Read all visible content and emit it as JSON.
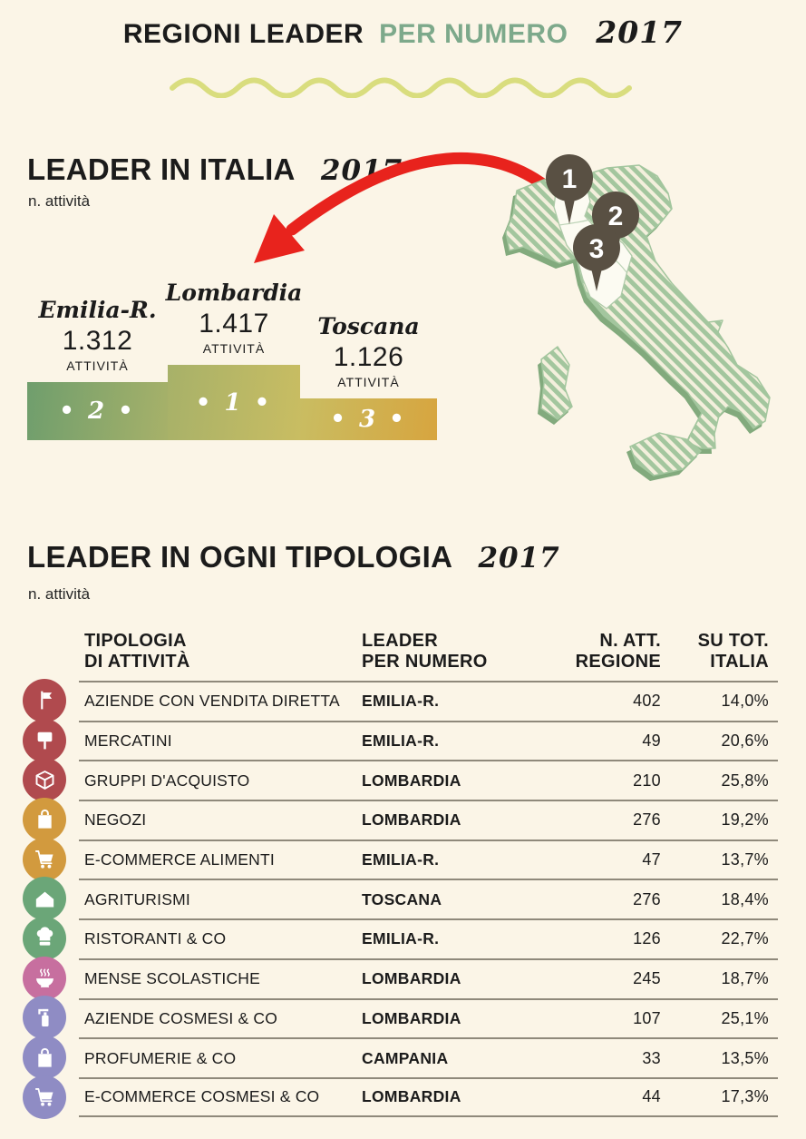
{
  "header": {
    "title_black": "REGIONI LEADER",
    "title_green": "PER NUMERO",
    "year": "2017"
  },
  "leader_italia": {
    "title": "LEADER IN ITALIA",
    "year": "2017",
    "subtitle": "n. attività",
    "podium": [
      {
        "rank": "2",
        "rank_label": "• 2 •",
        "region": "Emilia-R.",
        "value": "1.312",
        "unit": "ATTIVITÀ"
      },
      {
        "rank": "1",
        "rank_label": "• 1 •",
        "region": "Lombardia",
        "value": "1.417",
        "unit": "ATTIVITÀ"
      },
      {
        "rank": "3",
        "rank_label": "• 3 •",
        "region": "Toscana",
        "value": "1.126",
        "unit": "ATTIVITÀ"
      }
    ],
    "map_pins": [
      "1",
      "2",
      "3"
    ]
  },
  "tipologia": {
    "title": "LEADER IN OGNI TIPOLOGIA",
    "year": "2017",
    "subtitle": "n. attività",
    "columns": [
      "TIPOLOGIA\nDI ATTIVITÀ",
      "LEADER\nPER NUMERO",
      "N. ATT.\nREGIONE",
      "SU TOT.\nITALIA"
    ],
    "rows": [
      {
        "icon": "flag-icon",
        "icon_color": "#b04a4e",
        "category": "AZIENDE CON VENDITA DIRETTA",
        "leader": "EMILIA-R.",
        "n_att": "402",
        "pct": "14,0%"
      },
      {
        "icon": "signboard-icon",
        "icon_color": "#b04a4e",
        "category": "MERCATINI",
        "leader": "EMILIA-R.",
        "n_att": "49",
        "pct": "20,6%"
      },
      {
        "icon": "package-icon",
        "icon_color": "#b04a4e",
        "category": "GRUPPI D'ACQUISTO",
        "leader": "LOMBARDIA",
        "n_att": "210",
        "pct": "25,8%"
      },
      {
        "icon": "shopping-bag-icon",
        "icon_color": "#d29a3e",
        "category": "NEGOZI",
        "leader": "LOMBARDIA",
        "n_att": "276",
        "pct": "19,2%"
      },
      {
        "icon": "shopping-cart-icon",
        "icon_color": "#d29a3e",
        "category": "E-COMMERCE ALIMENTI",
        "leader": "EMILIA-R.",
        "n_att": "47",
        "pct": "13,7%"
      },
      {
        "icon": "farmhouse-icon",
        "icon_color": "#6ba678",
        "category": "AGRITURISMI",
        "leader": "TOSCANA",
        "n_att": "276",
        "pct": "18,4%"
      },
      {
        "icon": "chef-hat-icon",
        "icon_color": "#6ba678",
        "category": "RISTORANTI & CO",
        "leader": "EMILIA-R.",
        "n_att": "126",
        "pct": "22,7%"
      },
      {
        "icon": "soup-bowl-icon",
        "icon_color": "#c76f9f",
        "category": "MENSE SCOLASTICHE",
        "leader": "LOMBARDIA",
        "n_att": "245",
        "pct": "18,7%"
      },
      {
        "icon": "pump-bottle-icon",
        "icon_color": "#8f8cc4",
        "category": "AZIENDE COSMESI & CO",
        "leader": "LOMBARDIA",
        "n_att": "107",
        "pct": "25,1%"
      },
      {
        "icon": "shopping-bag-icon",
        "icon_color": "#8f8cc4",
        "category": "PROFUMERIE & CO",
        "leader": "CAMPANIA",
        "n_att": "33",
        "pct": "13,5%"
      },
      {
        "icon": "shopping-cart-icon",
        "icon_color": "#8f8cc4",
        "category": "E-COMMERCE COSMESI & CO",
        "leader": "LOMBARDIA",
        "n_att": "44",
        "pct": "17,3%"
      }
    ]
  },
  "colors": {
    "bg_cream": "#fbf5e7",
    "text_black": "#1b1b1b",
    "accent_green": "#7da98b",
    "wave_yellow": "#d9dd7e",
    "arrow_red": "#e8231d",
    "map_green": "#a3c69e",
    "map_shadow": "#82aa7d",
    "map_white": "#fcfbf2",
    "pin_brown": "#595043",
    "line_gray": "#8f897b",
    "podium_green": "#6f9e6d",
    "podium_mid": "#a7b169",
    "podium_gold": "#c9bd62",
    "podium_amber": "#d7a53f"
  },
  "chart_data": [
    {
      "type": "bar",
      "title": "LEADER IN ITALIA 2017",
      "subtitle": "n. attività",
      "categories": [
        "Emilia-R.",
        "Lombardia",
        "Toscana"
      ],
      "values": [
        1312,
        1417,
        1126
      ],
      "ranks": [
        2,
        1,
        3
      ],
      "ylabel": "n. attività",
      "annotations": "podium-style steps, ranks shown on bars; map of Italy with pins 1=Lombardia, 2=Emilia-Romagna area, 3=Toscana"
    },
    {
      "type": "table",
      "title": "LEADER IN OGNI TIPOLOGIA 2017",
      "subtitle": "n. attività",
      "columns": [
        "TIPOLOGIA DI ATTIVITÀ",
        "LEADER PER NUMERO",
        "N. ATT. REGIONE",
        "SU TOT. ITALIA"
      ],
      "rows": [
        [
          "AZIENDE CON VENDITA DIRETTA",
          "EMILIA-R.",
          402,
          "14,0%"
        ],
        [
          "MERCATINI",
          "EMILIA-R.",
          49,
          "20,6%"
        ],
        [
          "GRUPPI D'ACQUISTO",
          "LOMBARDIA",
          210,
          "25,8%"
        ],
        [
          "NEGOZI",
          "LOMBARDIA",
          276,
          "19,2%"
        ],
        [
          "E-COMMERCE ALIMENTI",
          "EMILIA-R.",
          47,
          "13,7%"
        ],
        [
          "AGRITURISMI",
          "TOSCANA",
          276,
          "18,4%"
        ],
        [
          "RISTORANTI & CO",
          "EMILIA-R.",
          126,
          "22,7%"
        ],
        [
          "MENSE SCOLASTICHE",
          "LOMBARDIA",
          245,
          "18,7%"
        ],
        [
          "AZIENDE COSMESI & CO",
          "LOMBARDIA",
          107,
          "25,1%"
        ],
        [
          "PROFUMERIE & CO",
          "CAMPANIA",
          33,
          "13,5%"
        ],
        [
          "E-COMMERCE COSMESI & CO",
          "LOMBARDIA",
          44,
          "17,3%"
        ]
      ]
    }
  ]
}
